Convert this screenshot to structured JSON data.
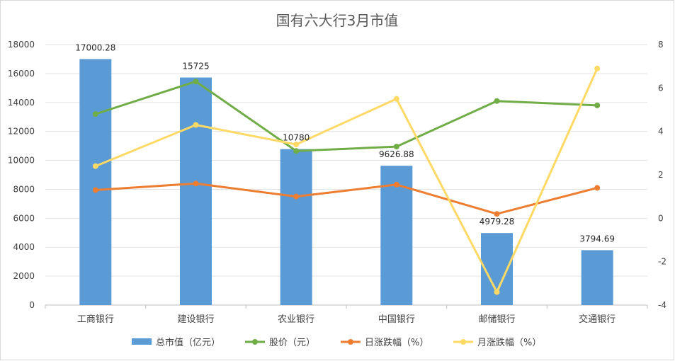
{
  "chart_data": {
    "type": "bar+line",
    "title": "国有六大行3月市值",
    "categories": [
      "工商银行",
      "建设银行",
      "农业银行",
      "中国银行",
      "邮储银行",
      "交通银行"
    ],
    "ylim_left": [
      0,
      18000
    ],
    "yticks_left": [
      0,
      2000,
      4000,
      6000,
      8000,
      10000,
      12000,
      14000,
      16000,
      18000
    ],
    "ylim_right": [
      -4,
      8
    ],
    "yticks_right": [
      -4,
      -2,
      0,
      2,
      4,
      6,
      8
    ],
    "grid": true,
    "legend_position": "bottom",
    "bar_series": {
      "name": "总市值（亿元）",
      "axis": "left",
      "color": "#5b9bd5",
      "values": [
        17000.28,
        15725,
        10780,
        9626.88,
        4979.28,
        3794.69
      ],
      "labels": [
        "17000.28",
        "15725",
        "10780",
        "9626.88",
        "4979.28",
        "3794.69"
      ]
    },
    "line_series": [
      {
        "name": "股价（元）",
        "axis": "right",
        "color": "#70ad47",
        "values": [
          4.8,
          6.3,
          3.1,
          3.3,
          5.4,
          5.2
        ]
      },
      {
        "name": "日涨跌幅（%）",
        "axis": "right",
        "color": "#ed7d31",
        "values": [
          1.3,
          1.6,
          1.0,
          1.55,
          0.2,
          1.4
        ]
      },
      {
        "name": "月涨跌幅（%）",
        "axis": "right",
        "color": "#ffd966",
        "values": [
          2.4,
          4.3,
          3.4,
          5.5,
          -3.4,
          6.9
        ]
      }
    ]
  }
}
